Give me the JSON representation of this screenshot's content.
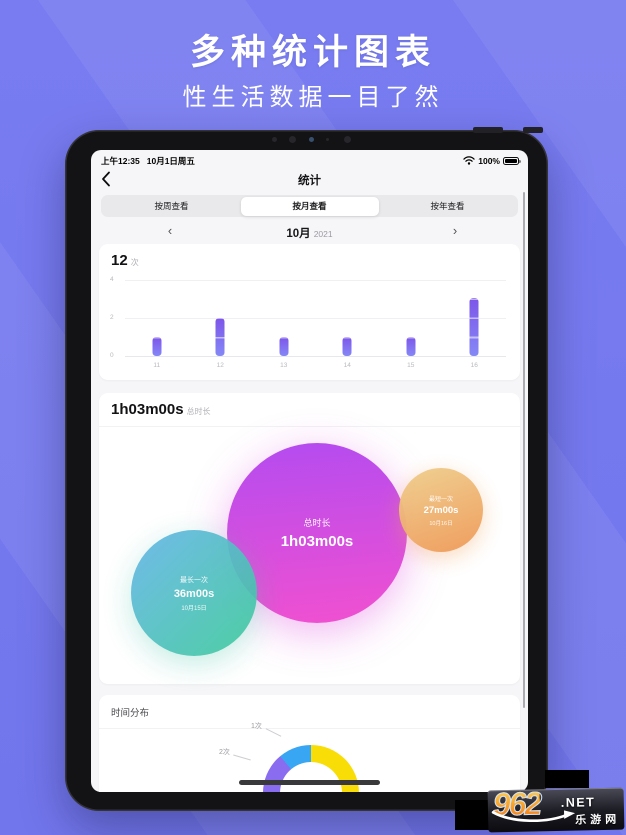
{
  "hero": {
    "title": "多种统计图表",
    "subtitle": "性生活数据一目了然"
  },
  "device": {
    "status_bar": {
      "time": "上午12:35",
      "date": "10月1日周五",
      "battery_percent": "100%"
    },
    "nav": {
      "title": "统计"
    },
    "tabs": [
      {
        "label": "按周查看",
        "selected": false
      },
      {
        "label": "按月查看",
        "selected": true
      },
      {
        "label": "按年查看",
        "selected": false
      }
    ],
    "month_selector": {
      "month": "10月",
      "year": "2021"
    }
  },
  "chart_data": [
    {
      "type": "bar",
      "title": "12",
      "title_unit": "次",
      "categories": [
        "11",
        "12",
        "13",
        "14",
        "15",
        "16"
      ],
      "values": [
        1,
        2,
        1,
        1,
        1,
        3
      ],
      "ylim": [
        0,
        4
      ],
      "yticks_top_to_bottom": [
        "4",
        "2",
        "0"
      ],
      "grid": "on",
      "bar_color_top": "#7d55e9",
      "bar_color_bottom": "#8588f6"
    },
    {
      "type": "bubble",
      "title": "1h03m00s",
      "title_unit": "总时长",
      "bubbles": [
        {
          "label": "总时长",
          "value": "1h03m00s",
          "date": "",
          "colors": [
            "#b44cf0",
            "#f150d0"
          ],
          "gradient_angle": 175,
          "size": "large"
        },
        {
          "label": "最长一次",
          "value": "36m00s",
          "date": "10月15日",
          "colors": [
            "#66b5e9",
            "#3ecb9b"
          ],
          "gradient_angle": 135,
          "size": "medium"
        },
        {
          "label": "最短一次",
          "value": "27m00s",
          "date": "10月16日",
          "colors": [
            "#efcf8e",
            "#ef9a58"
          ],
          "gradient_angle": 160,
          "size": "small"
        }
      ]
    },
    {
      "type": "donut",
      "title": "时间分布",
      "conic_from_deg": 0,
      "segments": [
        {
          "label": "",
          "color": "#f8de06",
          "from_deg": 0,
          "to_deg": 170
        },
        {
          "label": "",
          "color": "#13c9ad",
          "from_deg": 170,
          "to_deg": 222
        },
        {
          "label": "2次",
          "color": "#8a6cf0",
          "from_deg": 222,
          "to_deg": 320
        },
        {
          "label": "1次",
          "color": "#38a6f2",
          "from_deg": 320,
          "to_deg": 360
        }
      ],
      "callouts": [
        {
          "text": "1次"
        },
        {
          "text": "2次"
        }
      ]
    }
  ],
  "watermark": {
    "number": "962",
    "domain": ".NET",
    "site_name": "乐游网"
  }
}
